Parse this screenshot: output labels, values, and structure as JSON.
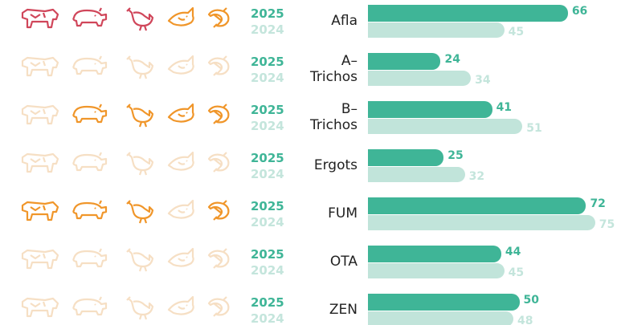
{
  "chart_data": {
    "type": "bar",
    "orientation": "horizontal",
    "categories": [
      "Afla",
      "A–Trichos",
      "B–Trichos",
      "Ergots",
      "FUM",
      "OTA",
      "ZEN"
    ],
    "series": [
      {
        "name": "2025",
        "color": "#3fb597",
        "label_color": "#3fb597",
        "values": [
          66,
          24,
          41,
          25,
          72,
          44,
          50
        ]
      },
      {
        "name": "2024",
        "color": "#c1e4da",
        "label_color": "#c4e5dc",
        "values": [
          45,
          34,
          51,
          32,
          75,
          45,
          48
        ]
      }
    ],
    "icon_colors": [
      [
        "#d0465a",
        "#d0465a",
        "#d0465a",
        "#f0962a",
        "#f0962a"
      ],
      [
        "#f6dfc4",
        "#f6dfc4",
        "#f6dfc4",
        "#f6dfc4",
        "#f6dfc4"
      ],
      [
        "#f6dfc4",
        "#f0962a",
        "#f0962a",
        "#f0962a",
        "#f0962a"
      ],
      [
        "#f6dfc4",
        "#f6dfc4",
        "#f6dfc4",
        "#f6dfc4",
        "#f6dfc4"
      ],
      [
        "#f0962a",
        "#f0962a",
        "#f0962a",
        "#f6dfc4",
        "#f0962a"
      ],
      [
        "#f6dfc4",
        "#f6dfc4",
        "#f6dfc4",
        "#f6dfc4",
        "#f6dfc4"
      ],
      [
        "#f6dfc4",
        "#f6dfc4",
        "#f6dfc4",
        "#f6dfc4",
        "#f6dfc4"
      ]
    ]
  }
}
